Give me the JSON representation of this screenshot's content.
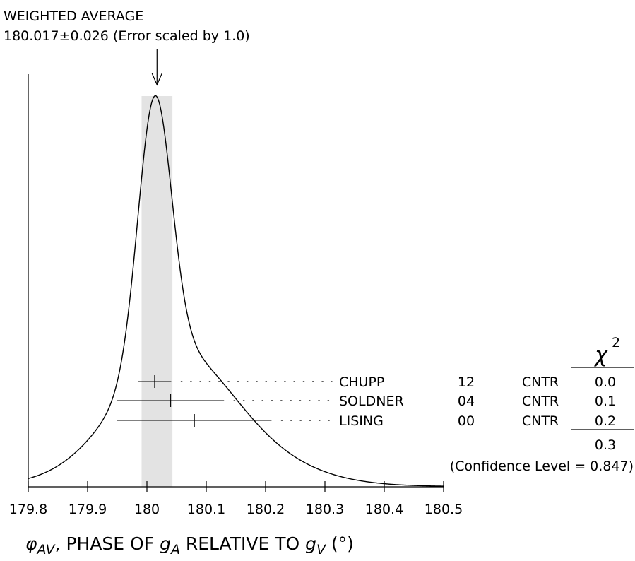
{
  "chart_data": {
    "type": "ideogram",
    "title_line1": "WEIGHTED AVERAGE",
    "title_line2": "180.017±0.026 (Error scaled by 1.0)",
    "average": 180.017,
    "average_error": 0.026,
    "xlim": [
      179.8,
      180.5
    ],
    "xticks": [
      179.8,
      179.9,
      180,
      180.1,
      180.2,
      180.3,
      180.4,
      180.5
    ],
    "xtick_labels": [
      "179.8",
      "179.9",
      "180",
      "180.1",
      "180.2",
      "180.3",
      "180.4",
      "180.5"
    ],
    "xlabel": {
      "phi": "φ",
      "phi_sub": "AV",
      "mid": ", PHASE OF ",
      "g1": "g",
      "g1_sub": "A",
      "rel": " RELATIVE TO ",
      "g2": "g",
      "g2_sub": "V",
      "unit": " (°)"
    },
    "chi2_header": "χ",
    "chi2_sup": "2",
    "measurements": [
      {
        "name": "CHUPP",
        "year": "12",
        "tech": "CNTR",
        "chi2": "0.0",
        "value": 180.013,
        "error": 0.028
      },
      {
        "name": "SOLDNER",
        "year": "04",
        "tech": "CNTR",
        "chi2": "0.1",
        "value": 180.04,
        "error": 0.09
      },
      {
        "name": "LISING",
        "year": "00",
        "tech": "CNTR",
        "chi2": "0.2",
        "value": 180.08,
        "error": 0.13
      }
    ],
    "chi2_total": "0.3",
    "confidence_level": "(Confidence Level = 0.847)"
  }
}
